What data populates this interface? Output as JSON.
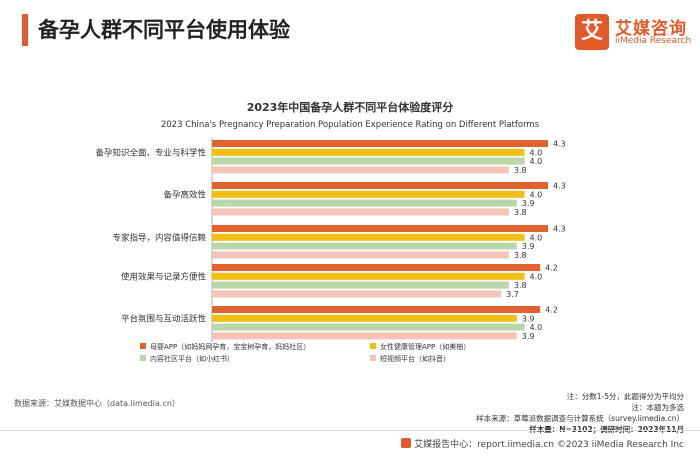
{
  "page_title": "备孕人群不同平台使用体验",
  "logo": {
    "mark": "艾",
    "name_cn": "艾媒咨询",
    "name_en": "iiMedia Research"
  },
  "colors": {
    "accent": "#e35a2a"
  },
  "chart_data": {
    "type": "bar",
    "orientation": "horizontal",
    "title": "2023年中国备孕人群不同平台体验度评分",
    "subtitle": "2023 China's Pregnancy Preparation Population Experience Rating on Different Platforms",
    "categories": [
      "备孕知识全面、专业与科学性",
      "备孕高效性",
      "专家指导，内容值得信赖",
      "使用效果与记录方便性",
      "平台氛围与互动活跃性"
    ],
    "series": [
      {
        "name": "母婴APP（如妈妈网孕育，宝宝树孕育，妈妈社区）",
        "color": "#e0622e",
        "values": [
          4.3,
          4.3,
          4.3,
          4.2,
          4.2
        ]
      },
      {
        "name": "女性健康管理APP（如美柚）",
        "color": "#f2c014",
        "values": [
          4.0,
          4.0,
          4.0,
          4.0,
          3.9
        ]
      },
      {
        "name": "内容社区平台（如小红书）",
        "color": "#b9d7a8",
        "values": [
          4.0,
          3.9,
          3.9,
          3.8,
          4.0
        ]
      },
      {
        "name": "短视频平台（如抖音）",
        "color": "#f4c4b8",
        "values": [
          3.8,
          3.8,
          3.8,
          3.7,
          3.9
        ]
      }
    ],
    "xlim": [
      0,
      4.3
    ],
    "legend_position": "bottom"
  },
  "notes": {
    "note1": "注：分数1-5分，此题得分为平均分",
    "note2": "注：本题为多选",
    "sample_source": "样本来源：草莓派数据调查与计算系统（survey.iimedia.cn）",
    "sample_size": "样本量：N=3102；调研时间：2023年11月"
  },
  "data_source": "数据来源：艾媒数据中心（data.iimedia.cn）",
  "footer": "艾媒报告中心：report.iimedia.cn ©2023 iiMedia Research Inc"
}
